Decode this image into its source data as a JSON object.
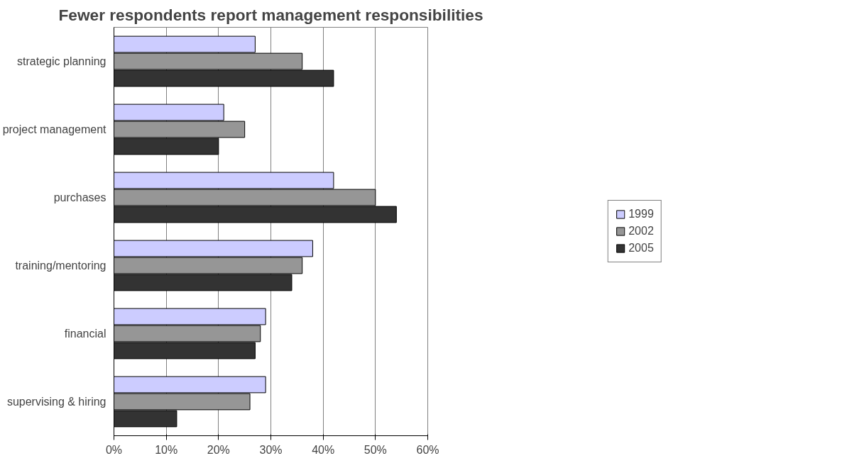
{
  "chart_data": {
    "type": "bar",
    "orientation": "horizontal",
    "title": "Fewer respondents report management responsibilities",
    "categories": [
      "strategic planning",
      "project management",
      "purchases",
      "training/mentoring",
      "financial",
      "supervising & hiring"
    ],
    "series": [
      {
        "name": "1999",
        "color": "#ccccff",
        "values": [
          27,
          21,
          42,
          38,
          29,
          29
        ]
      },
      {
        "name": "2002",
        "color": "#969696",
        "values": [
          36,
          25,
          50,
          36,
          28,
          26
        ]
      },
      {
        "name": "2005",
        "color": "#333333",
        "values": [
          42,
          20,
          54,
          34,
          27,
          12
        ]
      }
    ],
    "xlim": [
      0,
      60
    ],
    "xticks": [
      {
        "value": 0,
        "label": "0%"
      },
      {
        "value": 10,
        "label": "10%"
      },
      {
        "value": 20,
        "label": "20%"
      },
      {
        "value": 30,
        "label": "30%"
      },
      {
        "value": 40,
        "label": "40%"
      },
      {
        "value": 50,
        "label": "50%"
      },
      {
        "value": 60,
        "label": "60%"
      }
    ],
    "grid": "x",
    "legend": "right"
  }
}
